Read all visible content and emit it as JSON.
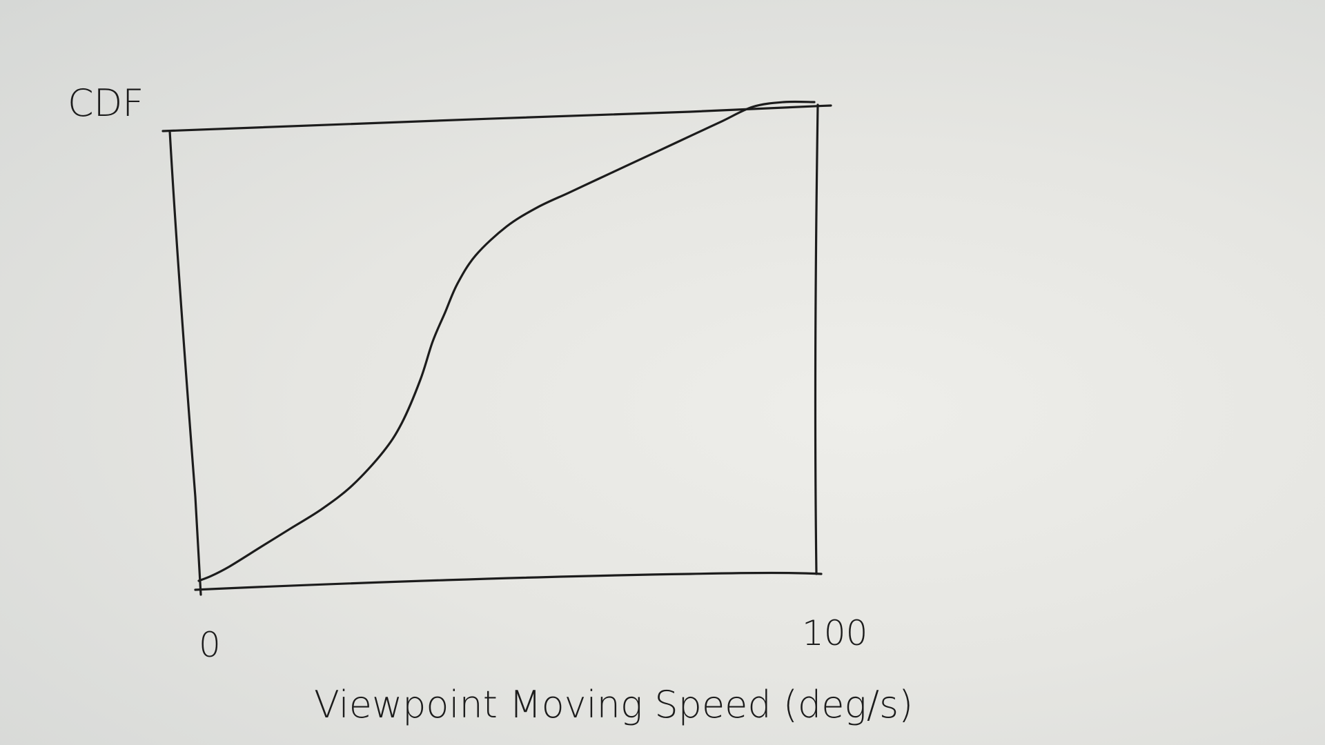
{
  "chart_data": {
    "type": "line",
    "title": "",
    "ylabel": "CDF",
    "xlabel": "Viewpoint Moving Speed (deg/s)",
    "xlim": [
      0,
      100
    ],
    "ylim": [
      0,
      1
    ],
    "x_ticks": [
      "0",
      "100"
    ],
    "grid": false,
    "legend": "none",
    "series": [
      {
        "x": [
          0,
          2,
          5,
          10,
          15,
          20,
          25,
          30,
          33,
          36,
          38,
          40,
          42,
          45,
          50,
          55,
          60,
          65,
          70,
          75,
          80,
          85,
          90,
          95,
          100
        ],
        "y": [
          0.0,
          0.01,
          0.03,
          0.07,
          0.11,
          0.15,
          0.2,
          0.27,
          0.33,
          0.42,
          0.5,
          0.56,
          0.62,
          0.68,
          0.74,
          0.78,
          0.81,
          0.84,
          0.87,
          0.9,
          0.93,
          0.96,
          0.99,
          1.0,
          1.0
        ],
        "color": "#1c1c1c"
      }
    ]
  }
}
